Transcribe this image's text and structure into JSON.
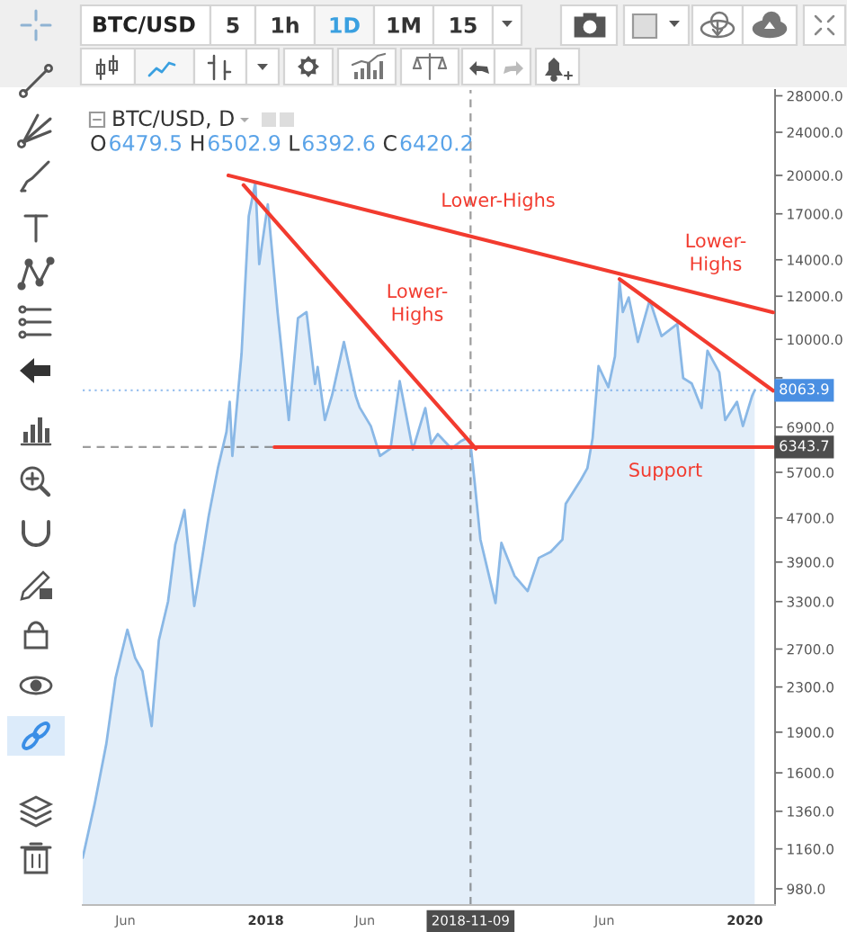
{
  "chart_data": {
    "type": "area",
    "title": "BTC/USD",
    "subtitle": "BTC/USD, D",
    "annotations": [
      "5",
      "1h",
      "1D",
      "1M",
      "15",
      "O 6479.5 H 6502.9 L 6392.6 C 6420.2",
      "Lower-Highs",
      "Lower-\nHighs",
      "Lower-\nHighs",
      "Support"
    ],
    "x": [
      "2017-03-28",
      "2017-04-15",
      "2017-05-03",
      "2017-05-17",
      "2017-06-04",
      "2017-06-16",
      "2017-06-27",
      "2017-07-11",
      "2017-07-22",
      "2017-08-05",
      "2017-08-16",
      "2017-08-30",
      "2017-09-14",
      "2017-09-25",
      "2017-10-06",
      "2017-10-20",
      "2017-11-02",
      "2017-11-07",
      "2017-11-11",
      "2017-11-25",
      "2017-12-06",
      "2017-12-16",
      "2017-12-22",
      "2018-01-04",
      "2018-01-19",
      "2018-02-05",
      "2018-02-19",
      "2018-03-04",
      "2018-03-17",
      "2018-03-21",
      "2018-04-01",
      "2018-04-12",
      "2018-04-30",
      "2018-05-18",
      "2018-05-24",
      "2018-06-10",
      "2018-06-24",
      "2018-07-10",
      "2018-07-24",
      "2018-08-13",
      "2018-09-01",
      "2018-09-10",
      "2018-09-20",
      "2018-10-11",
      "2018-10-25",
      "2018-11-04",
      "2018-11-09",
      "2018-11-15",
      "2018-11-24",
      "2018-11-30",
      "2018-12-17",
      "2018-12-26",
      "2019-01-15",
      "2019-02-04",
      "2019-02-21",
      "2019-03-11",
      "2019-03-29",
      "2019-04-03",
      "2019-04-26",
      "2019-05-06",
      "2019-05-14",
      "2019-05-23",
      "2019-06-07",
      "2019-06-17",
      "2019-06-24",
      "2019-06-29",
      "2019-07-08",
      "2019-07-22",
      "2019-08-09",
      "2019-08-27",
      "2019-09-20",
      "2019-09-29",
      "2019-10-12",
      "2019-10-27",
      "2019-11-05",
      "2019-11-23",
      "2019-12-02",
      "2019-12-20",
      "2019-12-29",
      "2020-01-12",
      "2020-01-16"
    ],
    "series": [
      {
        "color": "#8ab8e6",
        "values": [
          1117,
          1400,
          1810,
          2390,
          2930,
          2600,
          2460,
          1950,
          2800,
          3300,
          4200,
          4860,
          3240,
          3900,
          4740,
          5800,
          6760,
          7680,
          6110,
          9400,
          16830,
          19400,
          13740,
          17700,
          11200,
          7110,
          10940,
          11220,
          8280,
          8900,
          7110,
          7900,
          9890,
          7870,
          7500,
          6930,
          6110,
          6300,
          8380,
          6270,
          7480,
          6430,
          6700,
          6300,
          6500,
          6590,
          6420.2,
          5500,
          4290,
          4000,
          3280,
          4230,
          3680,
          3450,
          3970,
          4070,
          4290,
          4990,
          5520,
          5800,
          6590,
          8930,
          8170,
          9300,
          12740,
          11220,
          11940,
          9890,
          11810,
          10140,
          10670,
          8490,
          8300,
          7480,
          9530,
          8700,
          7110,
          7680,
          6930,
          7870,
          8063.9
        ]
      },
      {
        "type": "line",
        "color": "#f23b2f",
        "x": [
          "2017-11-05",
          "2020-02-13"
        ],
        "values": [
          20000,
          11210
        ]
      },
      {
        "type": "line",
        "color": "#f23b2f",
        "x": [
          "2017-11-28",
          "2018-11-17"
        ],
        "values": [
          19200,
          6300
        ]
      },
      {
        "type": "line",
        "color": "#f23b2f",
        "x": [
          "2019-06-24",
          "2020-02-13"
        ],
        "values": [
          12900,
          8050
        ]
      },
      {
        "type": "line",
        "color": "#f23b2f",
        "x": [
          "2018-01-14",
          "2020-02-13"
        ],
        "values": [
          6340,
          6340
        ]
      }
    ],
    "log": true,
    "xlim": [
      "2017-03-28",
      "2020-02-16"
    ],
    "xticks": [
      {
        "value": "2017-06-01",
        "label": "Jun"
      },
      {
        "value": "2018-01-01",
        "label": "2018"
      },
      {
        "value": "2018-06-01",
        "label": "Jun"
      },
      {
        "value": "2019-06-01",
        "label": "Jun"
      },
      {
        "value": "2020-01-01",
        "label": "2020"
      }
    ],
    "ylim": [
      915,
      28700
    ],
    "yticks": [
      {
        "value": 28000,
        "label": "28000.0"
      },
      {
        "value": 24000,
        "label": "24000.0"
      },
      {
        "value": 20000,
        "label": "20000.0"
      },
      {
        "value": 17000,
        "label": "17000.0"
      },
      {
        "value": 14000,
        "label": "14000.0"
      },
      {
        "value": 12000,
        "label": "12000.0"
      },
      {
        "value": 10000,
        "label": "10000.0"
      },
      {
        "value": 8500,
        "label": null
      },
      {
        "value": 6900,
        "label": "6900.0"
      },
      {
        "value": 5700,
        "label": "5700.0"
      },
      {
        "value": 4700,
        "label": "4700.0"
      },
      {
        "value": 3900,
        "label": "3900.0"
      },
      {
        "value": 3300,
        "label": "3300.0"
      },
      {
        "value": 2700,
        "label": "2700.0"
      },
      {
        "value": 2300,
        "label": "2300.0"
      },
      {
        "value": 1900,
        "label": "1900.0"
      },
      {
        "value": 1600,
        "label": "1600.0"
      },
      {
        "value": 1360,
        "label": "1360.0"
      },
      {
        "value": 1160,
        "label": "1160.0"
      },
      {
        "value": 980,
        "label": "980.0"
      }
    ],
    "ref_lines": [
      {
        "axis": "y",
        "value": 8063.9,
        "label": "8063.9",
        "color": "#4a8fe2",
        "line_style": "dotted"
      },
      {
        "axis": "y",
        "value": 6343.7,
        "label": "6343.7",
        "color": "#4d4d4d",
        "line_style": "dashed"
      },
      {
        "axis": "x",
        "value": "2018-11-09",
        "label": "2018-11-09",
        "color": "#4d4d4d",
        "line_style": "dashed"
      }
    ],
    "grid": false
  }
}
